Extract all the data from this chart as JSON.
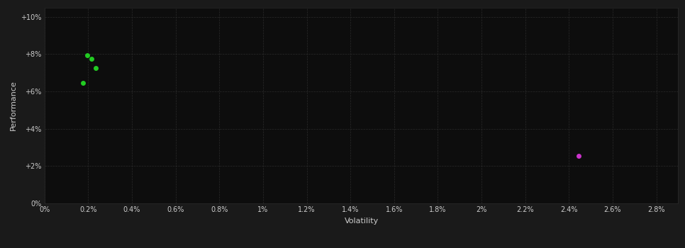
{
  "background_color": "#1a1a1a",
  "plot_bg_color": "#0d0d0d",
  "grid_color": "#2a2a2a",
  "text_color": "#cccccc",
  "xlabel": "Volatility",
  "ylabel": "Performance",
  "xlim": [
    0.0,
    0.029
  ],
  "ylim": [
    0.0,
    0.105
  ],
  "xticks": [
    0.0,
    0.002,
    0.004,
    0.006,
    0.008,
    0.01,
    0.012,
    0.014,
    0.016,
    0.018,
    0.02,
    0.022,
    0.024,
    0.026,
    0.028
  ],
  "xtick_labels": [
    "0%",
    "0.2%",
    "0.4%",
    "0.6%",
    "0.8%",
    "1%",
    "1.2%",
    "1.4%",
    "1.6%",
    "1.8%",
    "2%",
    "2.2%",
    "2.4%",
    "2.6%",
    "2.8%"
  ],
  "yticks": [
    0.0,
    0.02,
    0.04,
    0.06,
    0.08,
    0.1
  ],
  "ytick_labels": [
    "0%",
    "+2%",
    "+4%",
    "+6%",
    "+8%",
    "+10%"
  ],
  "green_points": [
    [
      0.00195,
      0.0795
    ],
    [
      0.00215,
      0.0775
    ],
    [
      0.00235,
      0.0725
    ],
    [
      0.00175,
      0.0645
    ]
  ],
  "magenta_points": [
    [
      0.02445,
      0.0255
    ]
  ],
  "green_color": "#22cc22",
  "magenta_color": "#cc33cc",
  "marker_size": 5
}
